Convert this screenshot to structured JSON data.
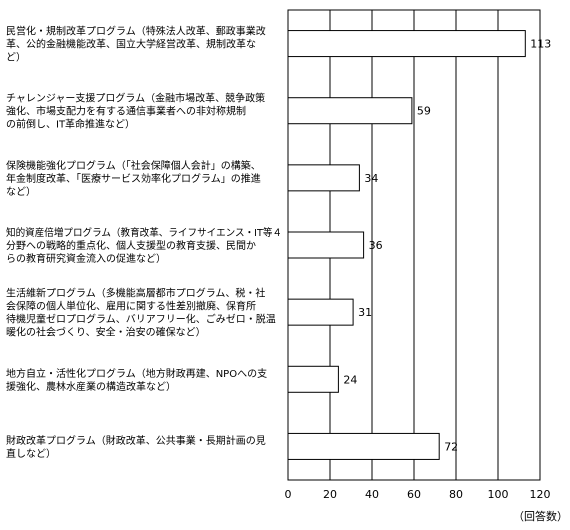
{
  "chart_data": {
    "type": "bar",
    "orientation": "horizontal",
    "categories": [
      [
        "民営化・規制改革プログラム（特殊法人改革、郵政事業改",
        "革、公的金融機能改革、国立大学経営改革、規制改革な",
        "ど）"
      ],
      [
        "チャレンジャー支援プログラム（金融市場改革、競争政策",
        "強化、市場支配力を有する通信事業者への非対称規制",
        "の前倒し、IT革命推進など）"
      ],
      [
        "保険機能強化プログラム（「社会保障個人会計」の構築、",
        "年金制度改革、「医療サービス効率化プログラム」の推進",
        "など）"
      ],
      [
        "知的資産倍増プログラム（教育改革、ライフサイエンス・IT等４",
        "分野への戦略的重点化、個人支援型の教育支援、民間か",
        "らの教育研究資金流入の促進など）"
      ],
      [
        "生活維新プログラム（多機能高層都市プログラム、税・社",
        "会保障の個人単位化、雇用に関する性差別撤廃、保育所",
        "待機児童ゼロプログラム、バリアフリー化、ごみゼロ・脱温",
        "暖化の社会づくり、安全・治安の確保など）"
      ],
      [
        "地方自立・活性化プログラム（地方財政再建、NPOへの支",
        "援強化、農林水産業の構造改革など）"
      ],
      [
        "財政改革プログラム（財政改革、公共事業・長期計画の見",
        "直しなど）"
      ]
    ],
    "values": [
      113,
      59,
      34,
      36,
      31,
      24,
      72
    ],
    "xlim": [
      0,
      120
    ],
    "xticks": [
      "0",
      "20",
      "40",
      "60",
      "80",
      "100",
      "120"
    ],
    "unit_label": "（回答数）",
    "grid": true,
    "colors": {
      "bar_fill": "#ffffff",
      "bar_stroke": "#000000",
      "grid": "#000000"
    }
  }
}
